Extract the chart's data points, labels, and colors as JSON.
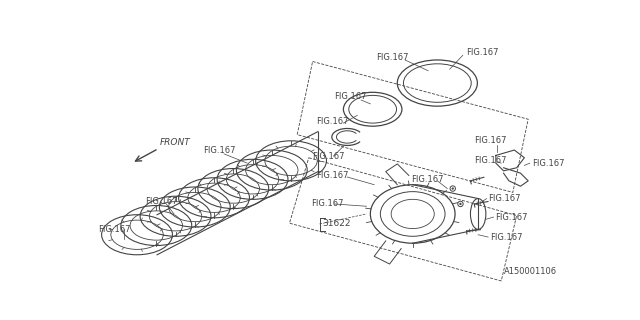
{
  "bg_color": "#ffffff",
  "line_color": "#444444",
  "text_color": "#444444",
  "fig_label": "FIG.167",
  "part_label": "31622",
  "arrow_label": "FRONT",
  "part_code": "A150001106"
}
